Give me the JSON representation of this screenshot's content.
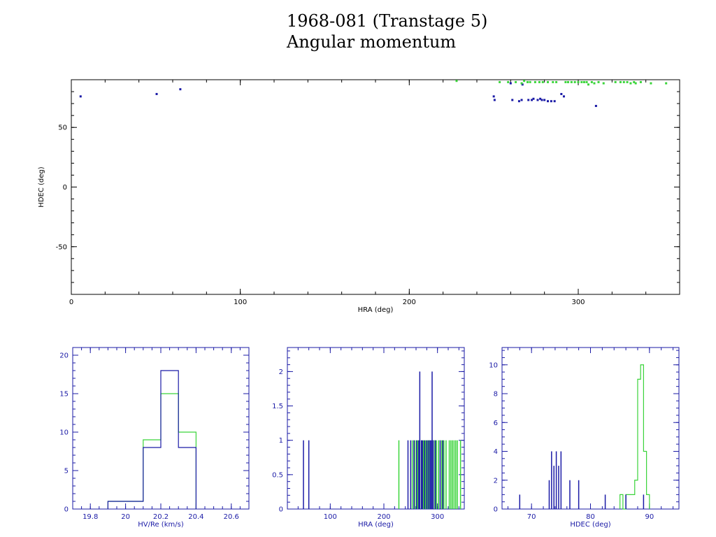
{
  "header": {
    "title": "1968-081 (Transtage 5)",
    "subtitle": "Angular momentum"
  },
  "colors": {
    "blue": "#1a1aa6",
    "green": "#3ad43a",
    "axis_black": "#000000"
  },
  "chart_data": [
    {
      "id": "scatter",
      "type": "scatter",
      "title": "",
      "xlabel": "HRA (deg)",
      "ylabel": "HDEC (deg)",
      "xlim": [
        0,
        360
      ],
      "ylim": [
        -90,
        90
      ],
      "xticks": [
        0,
        100,
        200,
        300
      ],
      "yticks": [
        -50,
        0,
        50
      ],
      "axis_color": "#000000",
      "series": [
        {
          "color": "#1a1aa6",
          "marker": "square",
          "points": [
            [
              5.5,
              76
            ],
            [
              50.5,
              78
            ],
            [
              64.5,
              82
            ],
            [
              250,
              76
            ],
            [
              250.5,
              73
            ],
            [
              261,
              73
            ],
            [
              265,
              72
            ],
            [
              266.5,
              73
            ],
            [
              267,
              86
            ],
            [
              270.5,
              73
            ],
            [
              272.5,
              73
            ],
            [
              273.5,
              74
            ],
            [
              276,
              73
            ],
            [
              277.5,
              74
            ],
            [
              278.5,
              73
            ],
            [
              280,
              73
            ],
            [
              282,
              72
            ],
            [
              284,
              72
            ],
            [
              286,
              72
            ],
            [
              290,
              78
            ],
            [
              291.5,
              76
            ],
            [
              310.5,
              68
            ],
            [
              260,
              87
            ]
          ]
        },
        {
          "color": "#3ad43a",
          "marker": "square",
          "points": [
            [
              228,
              89
            ],
            [
              253.5,
              88
            ],
            [
              258.5,
              88
            ],
            [
              263,
              88
            ],
            [
              266.5,
              87
            ],
            [
              268,
              89
            ],
            [
              270,
              88
            ],
            [
              271.5,
              88
            ],
            [
              274.5,
              88
            ],
            [
              277,
              88
            ],
            [
              279,
              88
            ],
            [
              282,
              88
            ],
            [
              285,
              88
            ],
            [
              287,
              88
            ],
            [
              292.5,
              88
            ],
            [
              294,
              88
            ],
            [
              296,
              88
            ],
            [
              298,
              88
            ],
            [
              300,
              88
            ],
            [
              302,
              88
            ],
            [
              303.5,
              88
            ],
            [
              305,
              88
            ],
            [
              306,
              86
            ],
            [
              308,
              88
            ],
            [
              309.5,
              87
            ],
            [
              312,
              88
            ],
            [
              315,
              87
            ],
            [
              322,
              88
            ],
            [
              325,
              88
            ],
            [
              327,
              88
            ],
            [
              329,
              88
            ],
            [
              331,
              87
            ],
            [
              333,
              88
            ],
            [
              334,
              87
            ],
            [
              337,
              88
            ],
            [
              343,
              87
            ],
            [
              352,
              87
            ]
          ]
        }
      ]
    },
    {
      "id": "hist-hv",
      "type": "histogram",
      "title": "",
      "xlabel": "HV/Re (km/s)",
      "ylabel": "",
      "xlim": [
        19.7,
        20.7
      ],
      "ylim": [
        0,
        21
      ],
      "xticks": [
        19.8,
        20,
        20.2,
        20.4,
        20.6
      ],
      "yticks": [
        0,
        5,
        10,
        15,
        20
      ],
      "axis_color": "#1a1aa6",
      "series": [
        {
          "color": "#3ad43a",
          "bin_edges": [
            19.9,
            20.1,
            20.2,
            20.3,
            20.4
          ],
          "counts": [
            1,
            9,
            15,
            10
          ]
        },
        {
          "color": "#1a1aa6",
          "bin_edges": [
            19.9,
            20.1,
            20.2,
            20.3,
            20.4
          ],
          "counts": [
            1,
            8,
            18,
            8
          ]
        }
      ]
    },
    {
      "id": "hist-hra",
      "type": "histogram",
      "title": "",
      "xlabel": "HRA (deg)",
      "ylabel": "",
      "xlim": [
        20,
        350
      ],
      "ylim": [
        0,
        2.35
      ],
      "xticks": [
        100,
        200,
        300
      ],
      "yticks": [
        0,
        0.5,
        1,
        1.5,
        2
      ],
      "axis_color": "#1a1aa6",
      "series": [
        {
          "color": "#3ad43a",
          "spikes": [
            [
              228,
              1
            ],
            [
              253,
              1
            ],
            [
              258,
              1
            ],
            [
              263,
              1
            ],
            [
              267,
              1
            ],
            [
              270,
              1
            ],
            [
              274,
              1
            ],
            [
              278,
              1
            ],
            [
              282,
              1
            ],
            [
              285,
              1
            ],
            [
              292,
              1
            ],
            [
              295,
              1
            ],
            [
              298,
              1
            ],
            [
              302,
              1
            ],
            [
              305,
              1
            ],
            [
              308,
              1
            ],
            [
              312,
              1
            ],
            [
              316,
              1
            ],
            [
              322,
              1
            ],
            [
              325,
              1
            ],
            [
              328,
              1
            ],
            [
              331,
              1
            ],
            [
              334,
              1
            ],
            [
              337,
              1
            ],
            [
              343,
              1
            ]
          ]
        },
        {
          "color": "#1a1aa6",
          "spikes": [
            [
              50,
              1
            ],
            [
              60,
              1
            ],
            [
              245,
              1
            ],
            [
              250,
              1
            ],
            [
              256,
              1
            ],
            [
              261,
              1
            ],
            [
              265,
              1
            ],
            [
              267,
              2
            ],
            [
              270,
              1
            ],
            [
              272,
              1
            ],
            [
              276,
              1
            ],
            [
              280,
              1
            ],
            [
              283,
              1
            ],
            [
              286,
              1
            ],
            [
              288,
              1
            ],
            [
              290,
              2
            ],
            [
              292,
              1
            ],
            [
              296,
              1
            ],
            [
              305,
              1
            ],
            [
              310,
              1
            ]
          ]
        }
      ]
    },
    {
      "id": "hist-hdec",
      "type": "histogram",
      "title": "",
      "xlabel": "HDEC (deg)",
      "ylabel": "",
      "xlim": [
        65,
        95
      ],
      "ylim": [
        0,
        11.2
      ],
      "xticks": [
        70,
        80,
        90
      ],
      "yticks": [
        0,
        2,
        4,
        6,
        8,
        10
      ],
      "axis_color": "#1a1aa6",
      "series": [
        {
          "color": "#3ad43a",
          "bin_edges": [
            85,
            85.5,
            86,
            86.5,
            87,
            87.5,
            88,
            88.5,
            89,
            89.5,
            90
          ],
          "counts": [
            1,
            0,
            1,
            1,
            1,
            2,
            9,
            10,
            4,
            1
          ]
        },
        {
          "color": "#1a1aa6",
          "spikes": [
            [
              68,
              1
            ],
            [
              73,
              2
            ],
            [
              73.4,
              4
            ],
            [
              73.8,
              3
            ],
            [
              74.2,
              4
            ],
            [
              74.6,
              3
            ],
            [
              75,
              4
            ],
            [
              76.5,
              2
            ],
            [
              78,
              2
            ],
            [
              82.5,
              1
            ],
            [
              86,
              1
            ],
            [
              89,
              1
            ]
          ]
        }
      ]
    }
  ]
}
